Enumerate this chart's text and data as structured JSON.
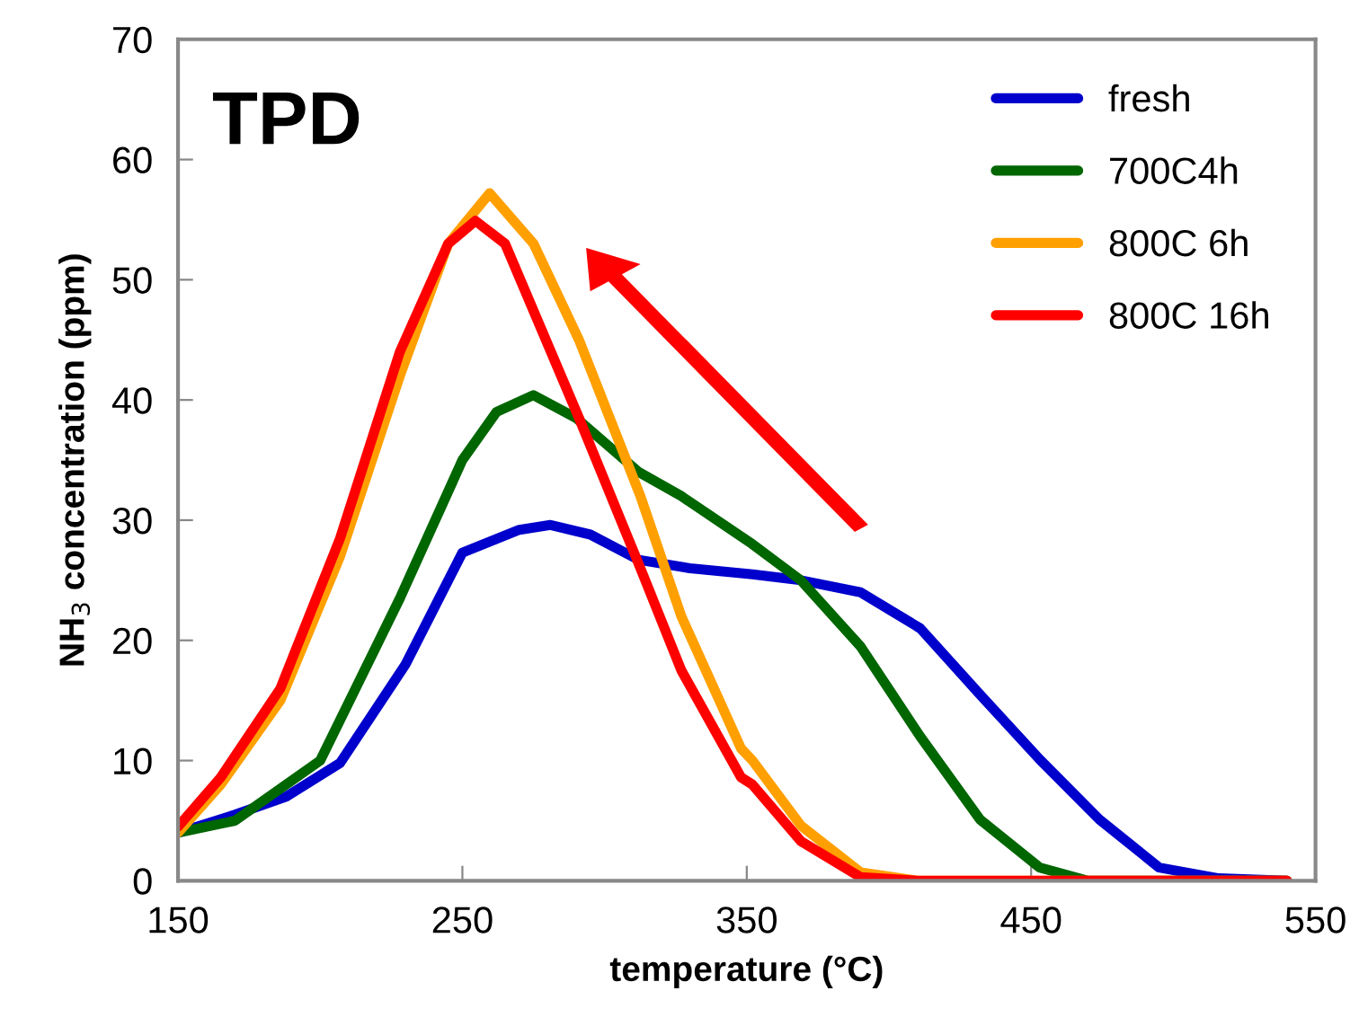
{
  "chart_data": {
    "type": "line",
    "xlabel": "temperature (°C)",
    "ylabel": "NH$_{3}$ concentration (ppm)",
    "annotations": [
      "TPD"
    ],
    "xlim": [
      150,
      550
    ],
    "xticks": [
      150,
      250,
      350,
      450,
      550
    ],
    "ylim": [
      0,
      70
    ],
    "yticks": [
      0,
      10,
      20,
      30,
      40,
      50,
      60,
      70
    ],
    "grid": false,
    "legend": "top right",
    "marker": "none",
    "line_style": "solid",
    "series": [
      {
        "name": "fresh",
        "color": "#0000cc",
        "x": [
          150,
          170,
          188,
          207,
          230,
          250,
          270,
          281,
          295,
          312,
          330,
          352,
          369,
          390,
          411,
          432,
          453,
          474,
          495,
          516,
          540
        ],
        "values": [
          4,
          5.5,
          7,
          9.8,
          18,
          27.3,
          29.2,
          29.6,
          28.8,
          26.7,
          26,
          25.5,
          25,
          24,
          21,
          15.5,
          10.1,
          5.1,
          1.1,
          0.2,
          0
        ]
      },
      {
        "name": "700C4h",
        "color": "#006600",
        "x": [
          150,
          170,
          200,
          228,
          250,
          262,
          275,
          290,
          312,
          327,
          352,
          369,
          390,
          411,
          432,
          453,
          470,
          540
        ],
        "values": [
          4,
          5,
          10,
          23.5,
          35,
          39,
          40.4,
          38.5,
          34,
          32,
          28,
          25,
          19.5,
          12,
          5.1,
          1.1,
          0,
          0
        ]
      },
      {
        "name": "800C 6h",
        "color": "#ffa000",
        "x": [
          150,
          165,
          186,
          207,
          228,
          245,
          259.6,
          275,
          291,
          312.6,
          327,
          348,
          352,
          369,
          390,
          410,
          540
        ],
        "values": [
          4,
          8,
          15,
          27,
          42,
          53,
          57.2,
          53,
          45,
          32,
          22,
          11,
          10,
          4.6,
          0.7,
          0,
          0
        ]
      },
      {
        "name": "800C 16h",
        "color": "#ff0000",
        "x": [
          150,
          165,
          186,
          207,
          228,
          245,
          254.6,
          265,
          291,
          312.6,
          327,
          348,
          352,
          369,
          390,
          410,
          540
        ],
        "values": [
          4.5,
          8.6,
          16,
          28.5,
          44,
          53,
          54.9,
          53,
          38.5,
          26,
          17.5,
          8.6,
          8,
          3.3,
          0.3,
          0,
          0
        ]
      }
    ]
  }
}
